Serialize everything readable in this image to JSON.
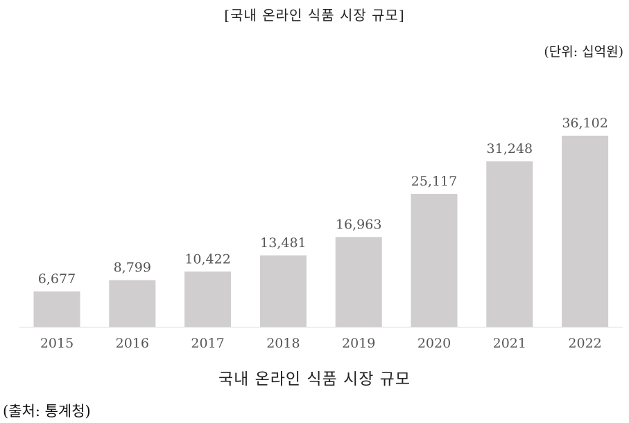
{
  "header": {
    "title": "[국내 온라인 식품 시장 규모]",
    "unit": "(단위: 십억원)"
  },
  "footer": {
    "chart_title": "국내 온라인 식품 시장 규모",
    "source": "(출처: 통계청)"
  },
  "colors": {
    "bar": "#d0cece",
    "axis": "#d9d9d9",
    "label": "#555555"
  },
  "chart_data": {
    "type": "bar",
    "title": "국내 온라인 식품 시장 규모",
    "categories": [
      "2015",
      "2016",
      "2017",
      "2018",
      "2019",
      "2020",
      "2021",
      "2022"
    ],
    "values": [
      6677,
      8799,
      10422,
      13481,
      16963,
      25117,
      31248,
      36102
    ],
    "value_labels": [
      "6,677",
      "8,799",
      "10,422",
      "13,481",
      "16,963",
      "25,117",
      "31,248",
      "36,102"
    ],
    "xlabel": "",
    "ylabel": "",
    "ylim": [
      0,
      36102
    ],
    "grid": false,
    "legend": "none"
  }
}
